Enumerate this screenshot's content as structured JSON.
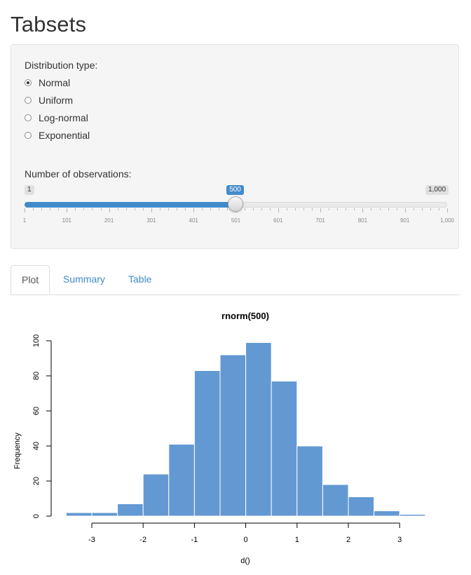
{
  "page": {
    "title": "Tabsets"
  },
  "controls": {
    "distribution_label": "Distribution type:",
    "distribution_options": [
      {
        "label": "Normal",
        "selected": true
      },
      {
        "label": "Uniform",
        "selected": false
      },
      {
        "label": "Log-normal",
        "selected": false
      },
      {
        "label": "Exponential",
        "selected": false
      }
    ],
    "observations_label": "Number of observations:",
    "slider": {
      "min_label": "1",
      "max_label": "1,000",
      "value_label": "500",
      "value": 500,
      "min": 1,
      "max": 1000,
      "tick_labels": [
        "1",
        "101",
        "201",
        "301",
        "401",
        "501",
        "601",
        "701",
        "801",
        "901",
        "1,000"
      ],
      "accent_color": "#428bca"
    }
  },
  "tabs": [
    {
      "label": "Plot",
      "active": true
    },
    {
      "label": "Summary",
      "active": false
    },
    {
      "label": "Table",
      "active": false
    }
  ],
  "chart_data": {
    "type": "bar",
    "title": "rnorm(500)",
    "xlabel": "d()",
    "ylabel": "Frequency",
    "bin_edges": [
      -3.5,
      -3,
      -2.5,
      -2,
      -1.5,
      -1,
      -0.5,
      0,
      0.5,
      1,
      1.5,
      2,
      2.5,
      3,
      3.5
    ],
    "values": [
      2,
      2,
      7,
      24,
      41,
      83,
      92,
      99,
      77,
      40,
      18,
      11,
      3,
      1
    ],
    "x_ticks": [
      -3,
      -2,
      -1,
      0,
      1,
      2,
      3
    ],
    "y_ticks": [
      0,
      20,
      40,
      60,
      80,
      100
    ],
    "xlim": [
      -3.5,
      3.5
    ],
    "ylim": [
      0,
      100
    ],
    "bar_color": "#6399d3",
    "grid": false
  }
}
